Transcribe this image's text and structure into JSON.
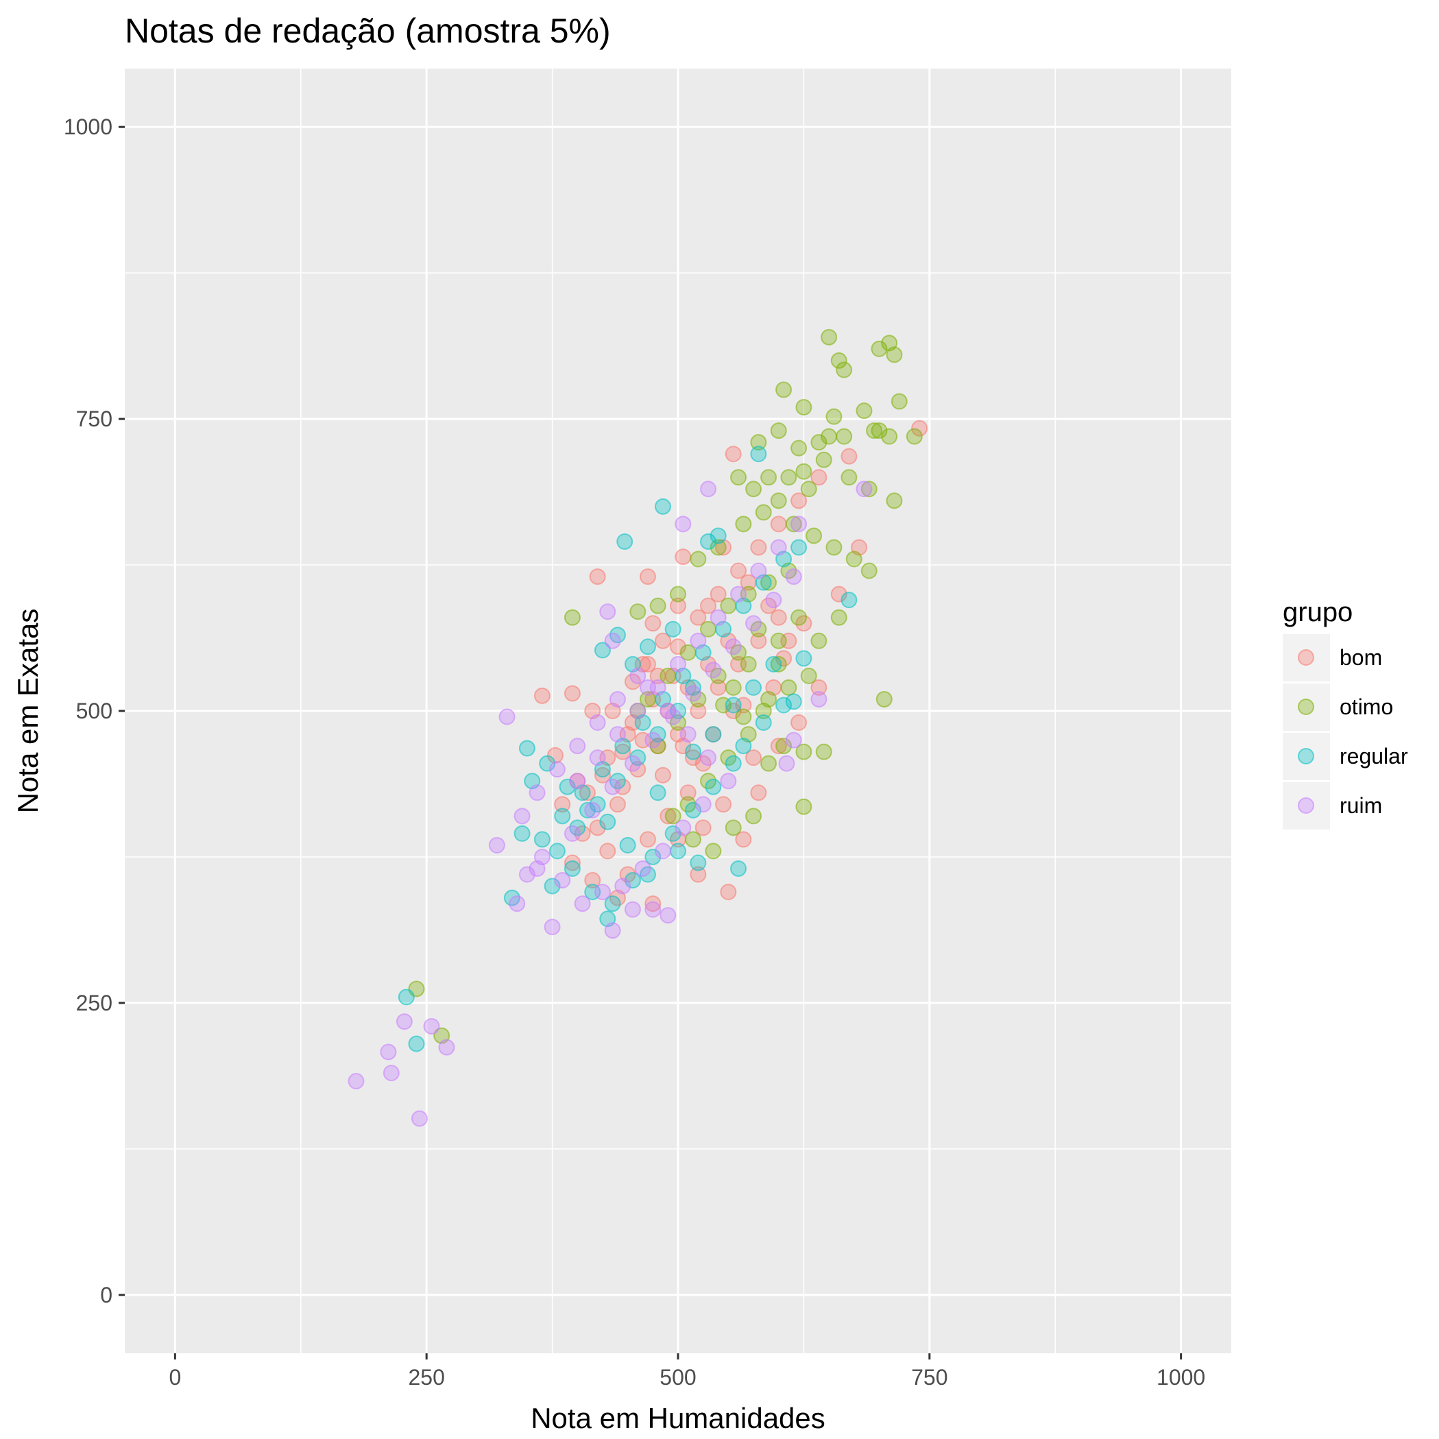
{
  "chart_data": {
    "type": "scatter",
    "title": "Notas de redação (amostra 5%)",
    "xlabel": "Nota em Humanidades",
    "ylabel": "Nota em Exatas",
    "xlim": [
      -50,
      1050
    ],
    "ylim": [
      -50,
      1050
    ],
    "xticks": [
      0,
      250,
      500,
      750,
      1000
    ],
    "yticks": [
      0,
      250,
      500,
      750,
      1000
    ],
    "grid": true,
    "legend": {
      "title": "grupo",
      "position": "right"
    },
    "series": [
      {
        "name": "bom",
        "color": "#F8766D",
        "points": [
          [
            740,
            742
          ],
          [
            670,
            718
          ],
          [
            555,
            720
          ],
          [
            420,
            615
          ],
          [
            470,
            615
          ],
          [
            505,
            632
          ],
          [
            365,
            513
          ],
          [
            395,
            515
          ],
          [
            415,
            500
          ],
          [
            378,
            462
          ],
          [
            450,
            480
          ],
          [
            480,
            530
          ],
          [
            500,
            555
          ],
          [
            520,
            580
          ],
          [
            540,
            600
          ],
          [
            560,
            620
          ],
          [
            580,
            640
          ],
          [
            600,
            660
          ],
          [
            620,
            680
          ],
          [
            640,
            700
          ],
          [
            470,
            540
          ],
          [
            490,
            500
          ],
          [
            510,
            520
          ],
          [
            530,
            540
          ],
          [
            550,
            560
          ],
          [
            460,
            450
          ],
          [
            440,
            420
          ],
          [
            420,
            400
          ],
          [
            480,
            470
          ],
          [
            500,
            480
          ],
          [
            520,
            500
          ],
          [
            540,
            520
          ],
          [
            560,
            540
          ],
          [
            580,
            560
          ],
          [
            600,
            580
          ],
          [
            610,
            560
          ],
          [
            590,
            590
          ],
          [
            570,
            610
          ],
          [
            545,
            640
          ],
          [
            530,
            590
          ],
          [
            410,
            430
          ],
          [
            430,
            460
          ],
          [
            455,
            490
          ],
          [
            475,
            510
          ],
          [
            495,
            530
          ],
          [
            515,
            460
          ],
          [
            535,
            480
          ],
          [
            555,
            500
          ],
          [
            575,
            460
          ],
          [
            595,
            520
          ],
          [
            430,
            380
          ],
          [
            450,
            360
          ],
          [
            470,
            390
          ],
          [
            490,
            410
          ],
          [
            510,
            430
          ],
          [
            385,
            420
          ],
          [
            400,
            440
          ],
          [
            425,
            445
          ],
          [
            445,
            465
          ],
          [
            465,
            475
          ],
          [
            525,
            400
          ],
          [
            545,
            420
          ],
          [
            565,
            390
          ],
          [
            520,
            360
          ],
          [
            550,
            345
          ],
          [
            580,
            430
          ],
          [
            600,
            470
          ],
          [
            620,
            490
          ],
          [
            640,
            520
          ],
          [
            660,
            600
          ],
          [
            680,
            640
          ],
          [
            625,
            575
          ],
          [
            605,
            545
          ],
          [
            565,
            505
          ],
          [
            485,
            560
          ],
          [
            500,
            590
          ],
          [
            475,
            575
          ],
          [
            465,
            540
          ],
          [
            455,
            525
          ],
          [
            435,
            500
          ],
          [
            505,
            470
          ],
          [
            525,
            455
          ],
          [
            485,
            445
          ],
          [
            445,
            435
          ],
          [
            405,
            395
          ],
          [
            395,
            370
          ],
          [
            415,
            355
          ],
          [
            440,
            340
          ],
          [
            475,
            335
          ],
          [
            500,
            390
          ]
        ]
      },
      {
        "name": "otimo",
        "color": "#7CAE00",
        "points": [
          [
            650,
            820
          ],
          [
            700,
            810
          ],
          [
            710,
            815
          ],
          [
            715,
            805
          ],
          [
            660,
            800
          ],
          [
            665,
            792
          ],
          [
            720,
            765
          ],
          [
            605,
            775
          ],
          [
            625,
            760
          ],
          [
            655,
            752
          ],
          [
            685,
            757
          ],
          [
            735,
            735
          ],
          [
            695,
            740
          ],
          [
            710,
            735
          ],
          [
            600,
            740
          ],
          [
            650,
            735
          ],
          [
            640,
            730
          ],
          [
            620,
            725
          ],
          [
            580,
            730
          ],
          [
            590,
            700
          ],
          [
            560,
            700
          ],
          [
            610,
            700
          ],
          [
            630,
            690
          ],
          [
            670,
            700
          ],
          [
            715,
            680
          ],
          [
            690,
            690
          ],
          [
            700,
            740
          ],
          [
            665,
            735
          ],
          [
            645,
            715
          ],
          [
            625,
            705
          ],
          [
            600,
            680
          ],
          [
            575,
            690
          ],
          [
            565,
            660
          ],
          [
            585,
            670
          ],
          [
            615,
            660
          ],
          [
            635,
            650
          ],
          [
            655,
            640
          ],
          [
            675,
            630
          ],
          [
            690,
            620
          ],
          [
            610,
            620
          ],
          [
            590,
            610
          ],
          [
            570,
            600
          ],
          [
            550,
            590
          ],
          [
            530,
            570
          ],
          [
            510,
            550
          ],
          [
            490,
            530
          ],
          [
            470,
            510
          ],
          [
            460,
            500
          ],
          [
            480,
            470
          ],
          [
            500,
            490
          ],
          [
            520,
            510
          ],
          [
            540,
            530
          ],
          [
            560,
            550
          ],
          [
            580,
            570
          ],
          [
            600,
            560
          ],
          [
            620,
            580
          ],
          [
            640,
            560
          ],
          [
            660,
            580
          ],
          [
            630,
            530
          ],
          [
            610,
            520
          ],
          [
            590,
            510
          ],
          [
            570,
            480
          ],
          [
            550,
            460
          ],
          [
            530,
            440
          ],
          [
            510,
            420
          ],
          [
            495,
            410
          ],
          [
            515,
            390
          ],
          [
            535,
            380
          ],
          [
            555,
            400
          ],
          [
            575,
            410
          ],
          [
            590,
            455
          ],
          [
            605,
            470
          ],
          [
            625,
            465
          ],
          [
            645,
            465
          ],
          [
            625,
            418
          ],
          [
            705,
            510
          ],
          [
            395,
            580
          ],
          [
            460,
            585
          ],
          [
            240,
            262
          ],
          [
            265,
            222
          ],
          [
            540,
            640
          ],
          [
            520,
            630
          ],
          [
            500,
            600
          ],
          [
            480,
            590
          ],
          [
            570,
            540
          ],
          [
            555,
            520
          ],
          [
            545,
            505
          ],
          [
            565,
            495
          ],
          [
            585,
            500
          ],
          [
            600,
            540
          ]
        ]
      },
      {
        "name": "regular",
        "color": "#00BFC4",
        "points": [
          [
            580,
            720
          ],
          [
            485,
            675
          ],
          [
            447,
            645
          ],
          [
            670,
            595
          ],
          [
            615,
            508
          ],
          [
            425,
            552
          ],
          [
            440,
            565
          ],
          [
            350,
            468
          ],
          [
            345,
            395
          ],
          [
            375,
            350
          ],
          [
            335,
            340
          ],
          [
            430,
            322
          ],
          [
            240,
            215
          ],
          [
            230,
            255
          ],
          [
            365,
            390
          ],
          [
            385,
            410
          ],
          [
            405,
            430
          ],
          [
            425,
            450
          ],
          [
            445,
            470
          ],
          [
            465,
            490
          ],
          [
            485,
            510
          ],
          [
            505,
            530
          ],
          [
            525,
            550
          ],
          [
            545,
            570
          ],
          [
            565,
            590
          ],
          [
            585,
            610
          ],
          [
            605,
            630
          ],
          [
            620,
            640
          ],
          [
            540,
            650
          ],
          [
            530,
            645
          ],
          [
            455,
            540
          ],
          [
            470,
            555
          ],
          [
            495,
            570
          ],
          [
            515,
            520
          ],
          [
            500,
            500
          ],
          [
            480,
            480
          ],
          [
            460,
            460
          ],
          [
            440,
            440
          ],
          [
            420,
            420
          ],
          [
            400,
            400
          ],
          [
            380,
            380
          ],
          [
            395,
            365
          ],
          [
            415,
            345
          ],
          [
            435,
            335
          ],
          [
            455,
            355
          ],
          [
            475,
            375
          ],
          [
            495,
            395
          ],
          [
            515,
            415
          ],
          [
            535,
            435
          ],
          [
            555,
            455
          ],
          [
            560,
            365
          ],
          [
            520,
            370
          ],
          [
            500,
            380
          ],
          [
            470,
            360
          ],
          [
            450,
            385
          ],
          [
            430,
            405
          ],
          [
            410,
            415
          ],
          [
            390,
            435
          ],
          [
            370,
            455
          ],
          [
            355,
            440
          ],
          [
            565,
            470
          ],
          [
            585,
            490
          ],
          [
            605,
            505
          ],
          [
            625,
            545
          ],
          [
            595,
            540
          ],
          [
            575,
            520
          ],
          [
            555,
            505
          ],
          [
            535,
            480
          ],
          [
            515,
            465
          ],
          [
            480,
            430
          ]
        ]
      },
      {
        "name": "ruim",
        "color": "#C77CFF",
        "points": [
          [
            530,
            690
          ],
          [
            505,
            660
          ],
          [
            685,
            690
          ],
          [
            640,
            510
          ],
          [
            615,
            475
          ],
          [
            608,
            455
          ],
          [
            330,
            495
          ],
          [
            320,
            385
          ],
          [
            360,
            365
          ],
          [
            340,
            335
          ],
          [
            375,
            315
          ],
          [
            435,
            312
          ],
          [
            455,
            330
          ],
          [
            490,
            325
          ],
          [
            475,
            330
          ],
          [
            180,
            183
          ],
          [
            215,
            190
          ],
          [
            212,
            208
          ],
          [
            228,
            234
          ],
          [
            255,
            230
          ],
          [
            270,
            212
          ],
          [
            243,
            151
          ],
          [
            345,
            410
          ],
          [
            360,
            430
          ],
          [
            380,
            450
          ],
          [
            400,
            470
          ],
          [
            420,
            490
          ],
          [
            440,
            510
          ],
          [
            460,
            530
          ],
          [
            435,
            560
          ],
          [
            430,
            585
          ],
          [
            470,
            520
          ],
          [
            490,
            500
          ],
          [
            510,
            480
          ],
          [
            530,
            460
          ],
          [
            550,
            440
          ],
          [
            525,
            420
          ],
          [
            505,
            400
          ],
          [
            485,
            380
          ],
          [
            465,
            365
          ],
          [
            445,
            350
          ],
          [
            425,
            345
          ],
          [
            405,
            335
          ],
          [
            385,
            355
          ],
          [
            365,
            375
          ],
          [
            350,
            360
          ],
          [
            395,
            395
          ],
          [
            415,
            415
          ],
          [
            435,
            435
          ],
          [
            455,
            455
          ],
          [
            475,
            475
          ],
          [
            495,
            495
          ],
          [
            515,
            515
          ],
          [
            535,
            535
          ],
          [
            555,
            555
          ],
          [
            575,
            575
          ],
          [
            595,
            595
          ],
          [
            615,
            615
          ],
          [
            620,
            660
          ],
          [
            600,
            640
          ],
          [
            580,
            620
          ],
          [
            560,
            600
          ],
          [
            540,
            580
          ],
          [
            520,
            560
          ],
          [
            500,
            540
          ],
          [
            480,
            520
          ],
          [
            460,
            500
          ],
          [
            440,
            480
          ],
          [
            420,
            460
          ],
          [
            400,
            440
          ]
        ]
      }
    ]
  }
}
